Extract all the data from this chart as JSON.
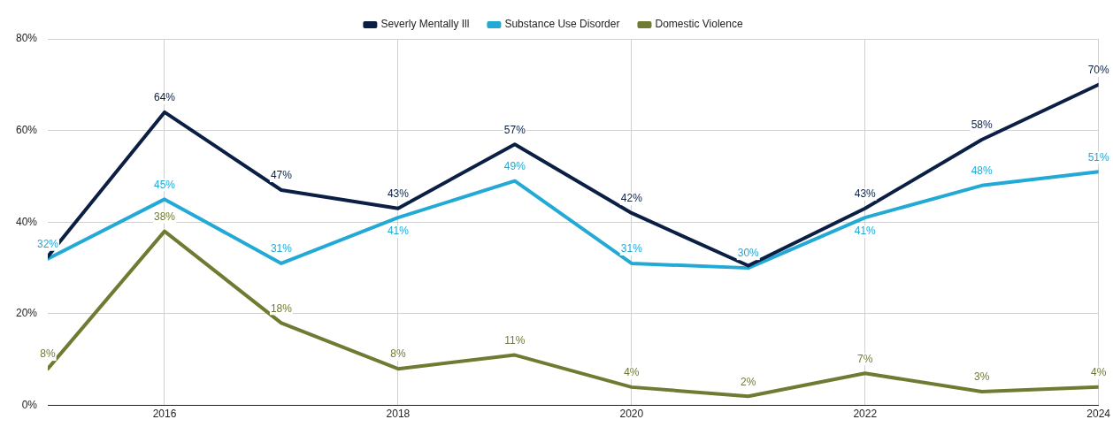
{
  "chart_data": {
    "type": "line",
    "x": [
      2015,
      2016,
      2017,
      2018,
      2019,
      2020,
      2021,
      2022,
      2023,
      2024
    ],
    "xlim": [
      2015,
      2024
    ],
    "xticks": [
      2016,
      2018,
      2020,
      2022,
      2024
    ],
    "ylim": [
      0,
      80
    ],
    "yticks": [
      {
        "value": 0,
        "label": "0%"
      },
      {
        "value": 20,
        "label": "20%"
      },
      {
        "value": 40,
        "label": "40%"
      },
      {
        "value": 60,
        "label": "60%"
      },
      {
        "value": 80,
        "label": "80%"
      }
    ],
    "grid": true,
    "legend": "top",
    "marker": "none",
    "series": [
      {
        "name": "Severly Mentally Ill",
        "color": "#0b1f44",
        "values": [
          32.5,
          64,
          47,
          43,
          57,
          42,
          30.5,
          43,
          58,
          70
        ],
        "value_labels": [
          null,
          "64%",
          "47%",
          "43%",
          "57%",
          "42%",
          null,
          "43%",
          "58%",
          "70%"
        ]
      },
      {
        "name": "Substance Use Disorder",
        "color": "#22a9d6",
        "values": [
          32,
          45,
          31,
          41,
          49,
          31,
          30,
          41,
          48,
          51
        ],
        "value_labels": [
          "32%",
          "45%",
          "31%",
          "41%",
          "49%",
          "31%",
          "30%",
          "41%",
          "48%",
          "51%"
        ]
      },
      {
        "name": "Domestic Violence",
        "color": "#6e7b32",
        "values": [
          8,
          38,
          18,
          8,
          11,
          4,
          2,
          7,
          3,
          4
        ],
        "value_labels": [
          "8%",
          "38%",
          "18%",
          "8%",
          "11%",
          "4%",
          "2%",
          "7%",
          "3%",
          "4%"
        ]
      }
    ]
  }
}
